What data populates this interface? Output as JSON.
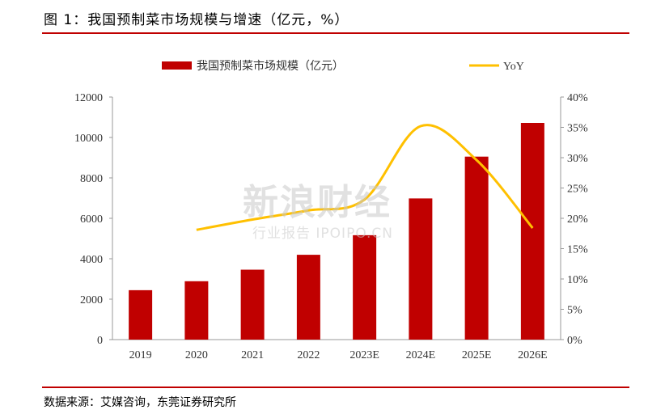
{
  "header": {
    "title": "图 1：我国预制菜市场规模与增速（亿元，%）"
  },
  "footer": {
    "source": "数据来源：艾媒咨询，东莞证券研究所"
  },
  "watermark": {
    "main": "新浪财经",
    "sub": "行业报告 IPOIPO.CN"
  },
  "chart_data": {
    "type": "bar",
    "categories": [
      "2019",
      "2020",
      "2021",
      "2022",
      "2023E",
      "2024E",
      "2025E",
      "2026E"
    ],
    "series": [
      {
        "name": "我国预制菜市场规模（亿元）",
        "type": "bar",
        "axis": "left",
        "values": [
          2445,
          2888,
          3459,
          4196,
          5165,
          6984,
          9052,
          10720
        ]
      },
      {
        "name": "YoY",
        "type": "line",
        "axis": "right",
        "values": [
          null,
          18.1,
          19.8,
          21.3,
          23.1,
          35.2,
          29.6,
          18.4
        ]
      }
    ],
    "y_left": {
      "ylim": [
        0,
        12000
      ],
      "ticks": [
        "0",
        "2000",
        "4000",
        "6000",
        "8000",
        "10000",
        "12000"
      ]
    },
    "y_right": {
      "ylim": [
        0,
        40
      ],
      "ticks": [
        "0%",
        "5%",
        "10%",
        "15%",
        "20%",
        "25%",
        "30%",
        "35%",
        "40%"
      ]
    },
    "legend": {
      "position": "top"
    },
    "grid": false,
    "colors": {
      "bar": "#c00000",
      "line": "#ffc000",
      "rule": "#c00000"
    }
  }
}
